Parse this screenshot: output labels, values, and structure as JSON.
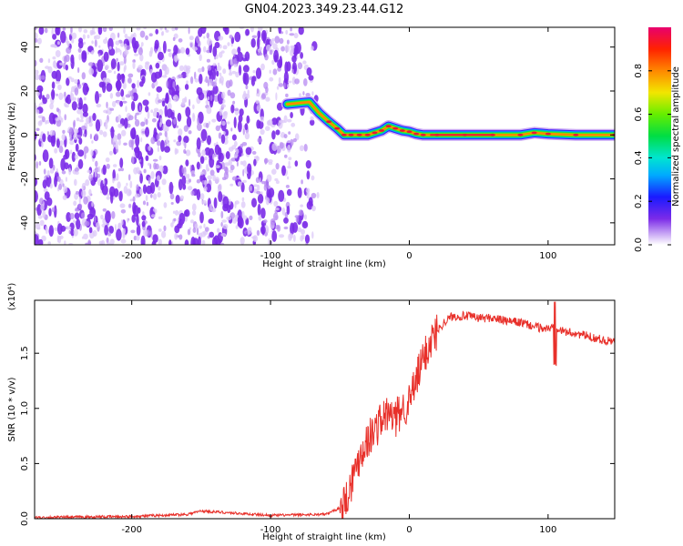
{
  "title": "GN04.2023.349.23.44.G12",
  "colors": {
    "scatter_purple": "#7b2be8",
    "ridge_red": "#e8153a",
    "snr_line": "#e8302a",
    "frame": "#000000"
  },
  "chart_data": [
    {
      "type": "heatmap",
      "title": "GN04.2023.349.23.44.G12",
      "xlabel": "Height of straight line (km)",
      "ylabel": "Frequency (Hz)",
      "xlim": [
        -270,
        148
      ],
      "ylim": [
        -50,
        49
      ],
      "xticks": [
        -200,
        -100,
        0,
        100
      ],
      "yticks": [
        -40,
        -20,
        0,
        20,
        40
      ],
      "grid": false,
      "noise_region_x": [
        -270,
        -72
      ],
      "ridge": {
        "x": [
          -88,
          -72,
          -65,
          -58,
          -52,
          -47,
          -42,
          -36,
          -30,
          -25,
          -20,
          -15,
          -10,
          -5,
          0,
          5,
          10,
          20,
          40,
          60,
          80,
          90,
          100,
          120,
          148
        ],
        "y": [
          14,
          15,
          10,
          6,
          3,
          0,
          0,
          0,
          0,
          1,
          2,
          4,
          3,
          2,
          1.5,
          0.5,
          0,
          0,
          0,
          0,
          0,
          1,
          0.5,
          0,
          0
        ]
      },
      "colorbar": {
        "label": "Normalized spectral amplitude",
        "range": [
          0,
          1
        ],
        "ticks": [
          "0.0",
          "0.2",
          "0.4",
          "0.6",
          "0.8"
        ]
      }
    },
    {
      "type": "line",
      "xlabel": "Height of straight line (km)",
      "ylabel": "SNR (10 * v/v)",
      "y_multiplier": "(x10⁴)",
      "xlim": [
        -270,
        148
      ],
      "ylim": [
        0,
        1.98
      ],
      "xticks": [
        -200,
        -100,
        0,
        100
      ],
      "yticks": [
        "0.0",
        "0.5",
        "1.0",
        "1.5"
      ],
      "grid": false,
      "series": [
        {
          "x": [
            -270,
            -200,
            -160,
            -150,
            -100,
            -60,
            -50,
            -45,
            -40,
            -35,
            -30,
            -25,
            -20,
            -15,
            -10,
            -5,
            0,
            5,
            10,
            15,
            20,
            25,
            30,
            40,
            50,
            60,
            70,
            80,
            90,
            100,
            105,
            110,
            120,
            130,
            140,
            148
          ],
          "y": [
            0.01,
            0.02,
            0.04,
            0.07,
            0.03,
            0.04,
            0.1,
            0.2,
            0.4,
            0.6,
            0.72,
            0.8,
            0.9,
            0.95,
            0.9,
            1.0,
            1.05,
            1.25,
            1.45,
            1.6,
            1.7,
            1.78,
            1.83,
            1.84,
            1.82,
            1.82,
            1.79,
            1.78,
            1.74,
            1.72,
            1.75,
            1.7,
            1.68,
            1.65,
            1.62,
            1.6
          ]
        }
      ]
    }
  ]
}
